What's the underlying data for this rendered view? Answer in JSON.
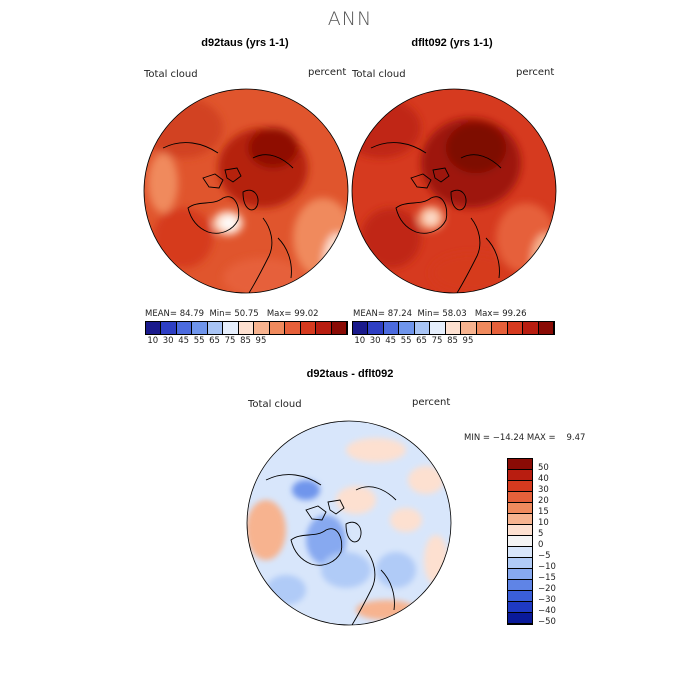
{
  "page": {
    "title": "ANN"
  },
  "panels": [
    {
      "title": "d92taus (yrs 1-1)",
      "variable": "Total cloud",
      "units": "percent",
      "stats": {
        "mean_label": "MEAN=",
        "mean": "84.79",
        "min_label": "Min=",
        "min": "50.75",
        "max_label": "Max=",
        "max": "99.02"
      },
      "colorbar": {
        "colors": [
          "#1a1a8c",
          "#2e3fc4",
          "#4c6bdf",
          "#6f95ec",
          "#a8c4f5",
          "#e5eefc",
          "#fde0d0",
          "#f7b38f",
          "#f08a5d",
          "#e6603a",
          "#d63a1f",
          "#b81d10",
          "#8a0b05"
        ],
        "labels": [
          "10",
          "30",
          "45",
          "55",
          "65",
          "75",
          "85",
          "95"
        ]
      }
    },
    {
      "title": "dflt092 (yrs 1-1)",
      "variable": "Total cloud",
      "units": "percent",
      "stats": {
        "mean_label": "MEAN=",
        "mean": "87.24",
        "min_label": "Min=",
        "min": "58.03",
        "max_label": "Max=",
        "max": "99.26"
      },
      "colorbar": {
        "colors": [
          "#1a1a8c",
          "#2e3fc4",
          "#4c6bdf",
          "#6f95ec",
          "#a8c4f5",
          "#e5eefc",
          "#fde0d0",
          "#f7b38f",
          "#f08a5d",
          "#e6603a",
          "#d63a1f",
          "#b81d10",
          "#8a0b05"
        ],
        "labels": [
          "10",
          "30",
          "45",
          "55",
          "65",
          "75",
          "85",
          "95"
        ]
      }
    }
  ],
  "diff": {
    "title": "d92taus - dflt092",
    "variable": "Total cloud",
    "units": "percent",
    "minmax": "MIN = −14.24 MAX =    9.47",
    "colorbar": {
      "colors": [
        "#8a0b05",
        "#b81d10",
        "#d63a1f",
        "#e6603a",
        "#f08a5d",
        "#f7b38f",
        "#fde0d0",
        "#f4f4f4",
        "#d8e6fb",
        "#b0cbf7",
        "#87a9f0",
        "#5f84e6",
        "#3a5ed9",
        "#1f3ac4",
        "#0a1a9a"
      ],
      "labels": [
        "50",
        "40",
        "30",
        "20",
        "15",
        "10",
        "5",
        "0",
        "−5",
        "−10",
        "−15",
        "−20",
        "−30",
        "−40",
        "−50"
      ]
    }
  }
}
